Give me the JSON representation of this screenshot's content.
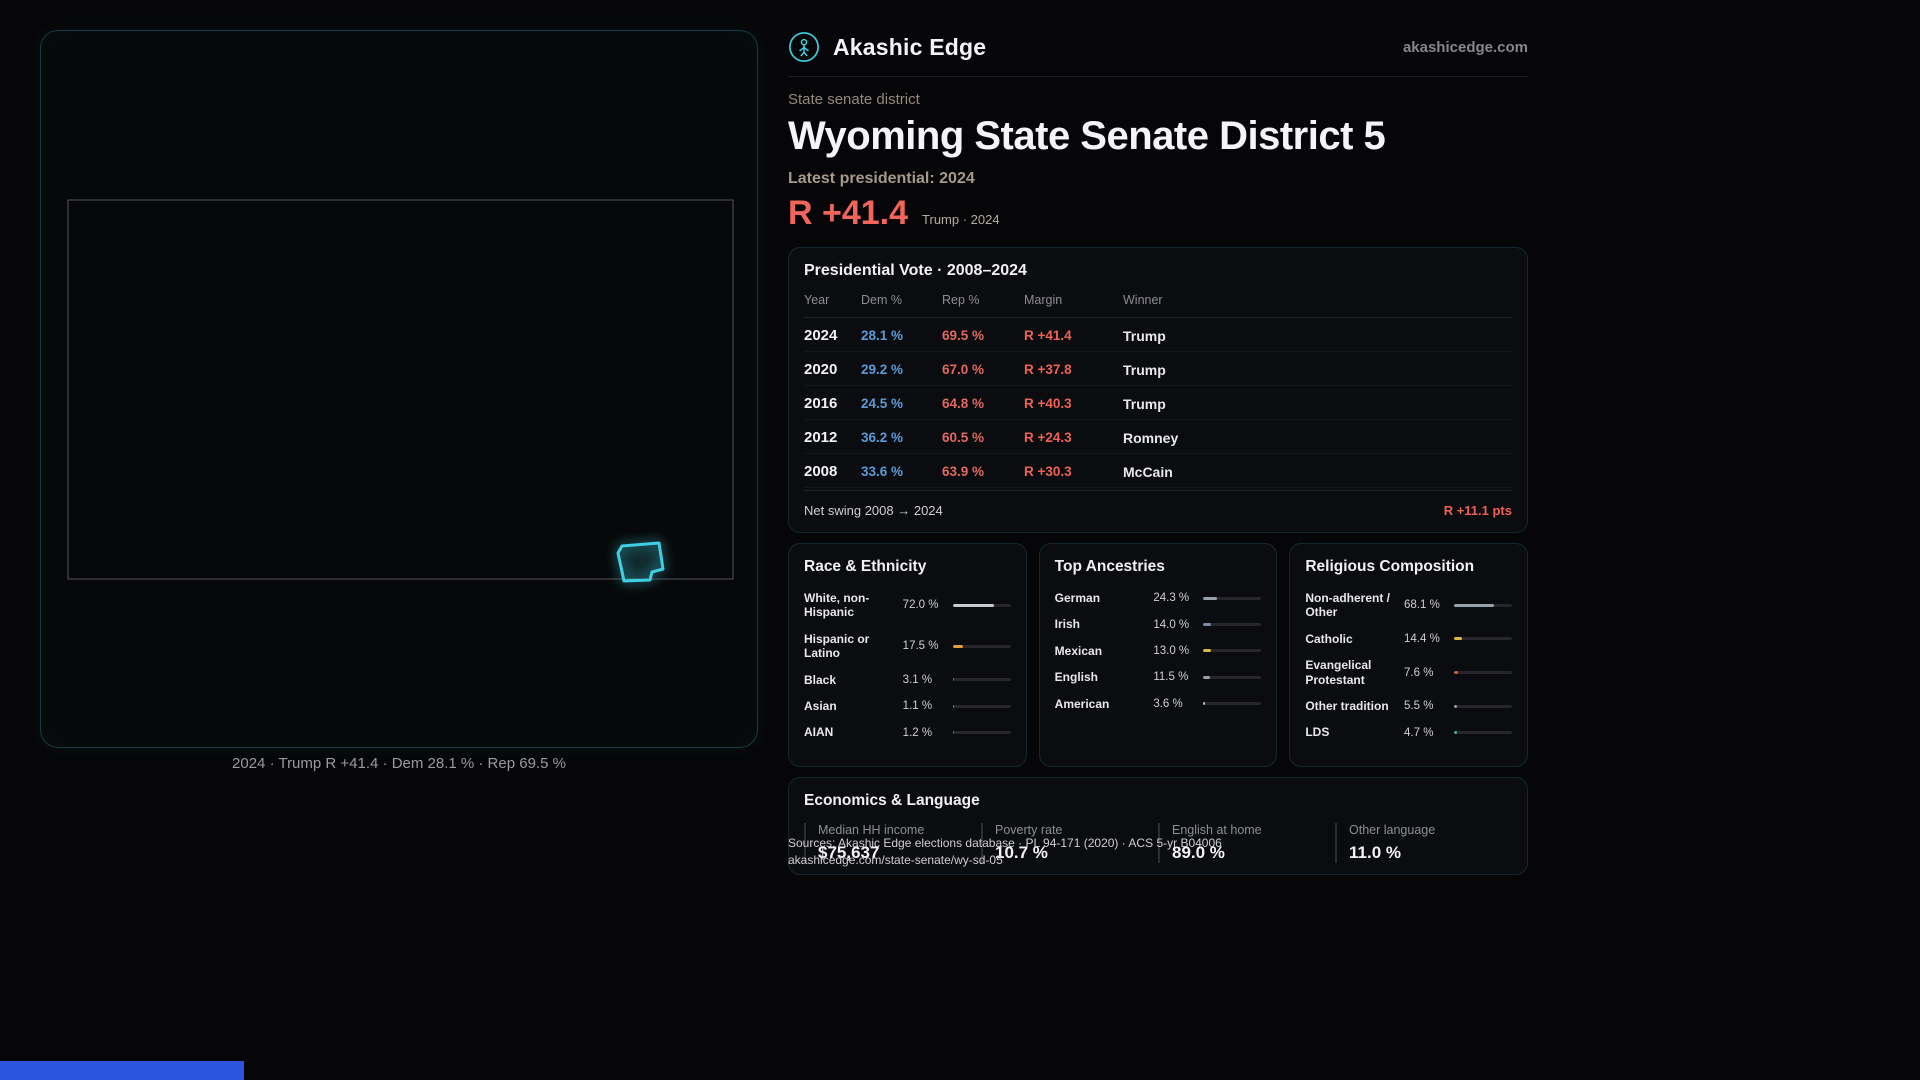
{
  "colors": {
    "accent_cyan": "#3ed0e2",
    "accent_red": "#f2655a",
    "dem_blue": "#5b9bd8",
    "rep_red": "#e2695f"
  },
  "header": {
    "brand": "Akashic Edge",
    "site": "akashicedge.com"
  },
  "hero": {
    "eyebrow": "State senate district",
    "title": "Wyoming State Senate District 5",
    "latest": "Latest presidential: 2024",
    "margin": "R +41.4",
    "margin_sub": "Trump · 2024"
  },
  "map": {
    "caption": "2024 · Trump R +41.4 · Dem 28.1 % · Rep 69.5 %"
  },
  "presidential": {
    "title": "Presidential Vote · 2008–2024",
    "columns": {
      "year": "Year",
      "dem": "Dem %",
      "rep": "Rep %",
      "margin": "Margin",
      "winner": "Winner"
    },
    "rows": [
      {
        "year": "2024",
        "dem": "28.1 %",
        "rep": "69.5 %",
        "margin": "R +41.4",
        "winner": "Trump"
      },
      {
        "year": "2020",
        "dem": "29.2 %",
        "rep": "67.0 %",
        "margin": "R +37.8",
        "winner": "Trump"
      },
      {
        "year": "2016",
        "dem": "24.5 %",
        "rep": "64.8 %",
        "margin": "R +40.3",
        "winner": "Trump"
      },
      {
        "year": "2012",
        "dem": "36.2 %",
        "rep": "60.5 %",
        "margin": "R +24.3",
        "winner": "Romney"
      },
      {
        "year": "2008",
        "dem": "33.6 %",
        "rep": "63.9 %",
        "margin": "R +30.3",
        "winner": "McCain"
      }
    ],
    "swing_label": "Net swing 2008 → 2024",
    "swing_value": "R +11.1 pts"
  },
  "cards": [
    {
      "title": "Race & Ethnicity",
      "rows": [
        {
          "label": "White, non-Hispanic",
          "value": "72.0 %",
          "pct": 72.0,
          "color": "#c7cad1"
        },
        {
          "label": "Hispanic or Latino",
          "value": "17.5 %",
          "pct": 17.5,
          "color": "#e29d3c"
        },
        {
          "label": "Black",
          "value": "3.1 %",
          "pct": 3.1,
          "color": "#5a64cf"
        },
        {
          "label": "Asian",
          "value": "1.1 %",
          "pct": 1.1,
          "color": "#44b873"
        },
        {
          "label": "AIAN",
          "value": "1.2 %",
          "pct": 1.2,
          "color": "#d2593f"
        }
      ]
    },
    {
      "title": "Top Ancestries",
      "rows": [
        {
          "label": "German",
          "value": "24.3 %",
          "pct": 24.3,
          "color": "#99a1ad"
        },
        {
          "label": "Irish",
          "value": "14.0 %",
          "pct": 14.0,
          "color": "#7e8aa8"
        },
        {
          "label": "Mexican",
          "value": "13.0 %",
          "pct": 13.0,
          "color": "#d9b93e"
        },
        {
          "label": "English",
          "value": "11.5 %",
          "pct": 11.5,
          "color": "#99a1ad"
        },
        {
          "label": "American",
          "value": "3.6 %",
          "pct": 3.6,
          "color": "#c0c4cb"
        }
      ]
    },
    {
      "title": "Religious Composition",
      "rows": [
        {
          "label": "Non-adherent / Other",
          "value": "68.1 %",
          "pct": 68.1,
          "color": "#99a1ad"
        },
        {
          "label": "Catholic",
          "value": "14.4 %",
          "pct": 14.4,
          "color": "#d9b93e"
        },
        {
          "label": "Evangelical Protestant",
          "value": "7.6 %",
          "pct": 7.6,
          "color": "#d2593f"
        },
        {
          "label": "Other tradition",
          "value": "5.5 %",
          "pct": 5.5,
          "color": "#99a1ad"
        },
        {
          "label": "LDS",
          "value": "4.7 %",
          "pct": 4.7,
          "color": "#3cb88e"
        }
      ]
    }
  ],
  "economics": {
    "title": "Economics & Language",
    "stats": [
      {
        "label": "Median HH income",
        "value": "$75,637"
      },
      {
        "label": "Poverty rate",
        "value": "10.7 %"
      },
      {
        "label": "English at home",
        "value": "89.0 %"
      },
      {
        "label": "Other language",
        "value": "11.0 %"
      }
    ]
  },
  "footer": {
    "sources": "Sources: Akashic Edge elections database · PL 94-171 (2020) · ACS 5-yr B04006",
    "permalink": "akashicedge.com/state-senate/wy-sd-05"
  },
  "chart_data": [
    {
      "type": "table",
      "title": "Presidential Vote · 2008–2024",
      "columns": [
        "Year",
        "Dem %",
        "Rep %",
        "Margin",
        "Winner"
      ],
      "rows": [
        [
          2024,
          28.1,
          69.5,
          "R +41.4",
          "Trump"
        ],
        [
          2020,
          29.2,
          67.0,
          "R +37.8",
          "Trump"
        ],
        [
          2016,
          24.5,
          64.8,
          "R +40.3",
          "Trump"
        ],
        [
          2012,
          36.2,
          60.5,
          "R +24.3",
          "Romney"
        ],
        [
          2008,
          33.6,
          63.9,
          "R +30.3",
          "McCain"
        ]
      ],
      "footnote": "Net swing 2008 → 2024: R +11.1 pts"
    },
    {
      "type": "bar",
      "title": "Race & Ethnicity",
      "orientation": "horizontal",
      "categories": [
        "White, non-Hispanic",
        "Hispanic or Latino",
        "Black",
        "Asian",
        "AIAN"
      ],
      "values": [
        72.0,
        17.5,
        3.1,
        1.1,
        1.2
      ],
      "unit": "%",
      "xlim": [
        0,
        100
      ]
    },
    {
      "type": "bar",
      "title": "Top Ancestries",
      "orientation": "horizontal",
      "categories": [
        "German",
        "Irish",
        "Mexican",
        "English",
        "American"
      ],
      "values": [
        24.3,
        14.0,
        13.0,
        11.5,
        3.6
      ],
      "unit": "%",
      "xlim": [
        0,
        100
      ]
    },
    {
      "type": "bar",
      "title": "Religious Composition",
      "orientation": "horizontal",
      "categories": [
        "Non-adherent / Other",
        "Catholic",
        "Evangelical Protestant",
        "Other tradition",
        "LDS"
      ],
      "values": [
        68.1,
        14.4,
        7.6,
        5.5,
        4.7
      ],
      "unit": "%",
      "xlim": [
        0,
        100
      ]
    },
    {
      "type": "table",
      "title": "Economics & Language",
      "columns": [
        "Median HH income",
        "Poverty rate",
        "English at home",
        "Other language"
      ],
      "rows": [
        [
          "$75,637",
          "10.7 %",
          "89.0 %",
          "11.0 %"
        ]
      ]
    }
  ]
}
